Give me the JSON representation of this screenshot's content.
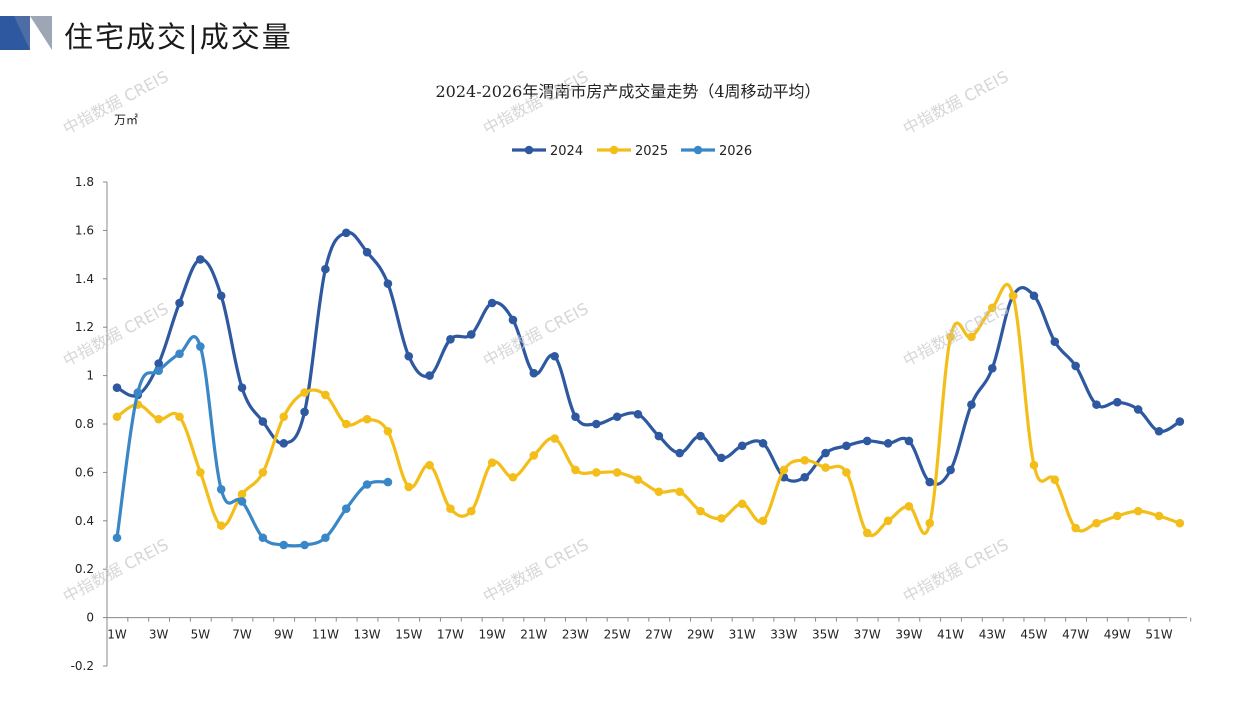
{
  "header": {
    "title": "住宅成交|成交量"
  },
  "watermark": "中指数据 CREIS",
  "chart_data": {
    "type": "line",
    "title": "2024-2026年渭南市房产成交量走势（4周移动平均）",
    "unit_label": "万㎡",
    "xlabel": "",
    "ylabel": "",
    "ylim": [
      -0.2,
      1.8
    ],
    "yticks": [
      "-0.2",
      "0",
      "0.2",
      "0.4",
      "0.6",
      "0.8",
      "1",
      "1.2",
      "1.4",
      "1.6",
      "1.8"
    ],
    "ytick_values": [
      -0.2,
      0,
      0.2,
      0.4,
      0.6,
      0.8,
      1.0,
      1.2,
      1.4,
      1.6,
      1.8
    ],
    "x_tick_labels": [
      "1W",
      "3W",
      "5W",
      "7W",
      "9W",
      "11W",
      "13W",
      "15W",
      "17W",
      "19W",
      "21W",
      "23W",
      "25W",
      "27W",
      "29W",
      "31W",
      "33W",
      "35W",
      "37W",
      "39W",
      "41W",
      "43W",
      "45W",
      "47W",
      "49W",
      "51W"
    ],
    "x_count": 52,
    "legend_position": "top-center",
    "grid": false,
    "series": [
      {
        "name": "2024",
        "color": "#2E58A0",
        "values": [
          0.95,
          0.92,
          1.05,
          1.3,
          1.48,
          1.33,
          0.95,
          0.81,
          0.72,
          0.85,
          1.44,
          1.59,
          1.51,
          1.38,
          1.08,
          1.0,
          1.15,
          1.17,
          1.3,
          1.23,
          1.01,
          1.08,
          0.83,
          0.8,
          0.83,
          0.84,
          0.75,
          0.68,
          0.75,
          0.66,
          0.71,
          0.72,
          0.58,
          0.58,
          0.68,
          0.71,
          0.73,
          0.72,
          0.73,
          0.56,
          0.61,
          0.88,
          1.03,
          1.33,
          1.33,
          1.14,
          1.04,
          0.88,
          0.89,
          0.86,
          0.77,
          0.81
        ]
      },
      {
        "name": "2025",
        "color": "#F4BE1A",
        "values": [
          0.83,
          0.88,
          0.82,
          0.83,
          0.6,
          0.38,
          0.51,
          0.6,
          0.83,
          0.93,
          0.92,
          0.8,
          0.82,
          0.77,
          0.54,
          0.63,
          0.45,
          0.44,
          0.64,
          0.58,
          0.67,
          0.74,
          0.61,
          0.6,
          0.6,
          0.57,
          0.52,
          0.52,
          0.44,
          0.41,
          0.47,
          0.4,
          0.61,
          0.65,
          0.62,
          0.6,
          0.35,
          0.4,
          0.46,
          0.39,
          1.16,
          1.16,
          1.28,
          1.33,
          0.63,
          0.57,
          0.37,
          0.39,
          0.42,
          0.44,
          0.42,
          0.39
        ]
      },
      {
        "name": "2026",
        "color": "#3A87C8",
        "values": [
          0.33,
          0.93,
          1.02,
          1.09,
          1.12,
          0.53,
          0.48,
          0.33,
          0.3,
          0.3,
          0.33,
          0.45,
          0.55,
          0.56
        ]
      }
    ]
  }
}
